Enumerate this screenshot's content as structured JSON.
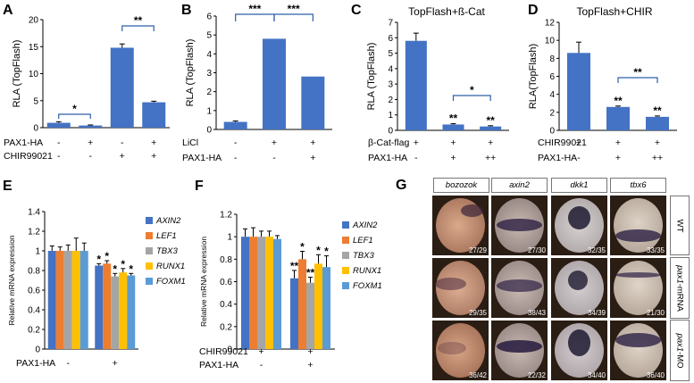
{
  "colors": {
    "bar": "#4472C4",
    "AXIN2": "#4472C4",
    "LEF1": "#ED7D31",
    "TBX3": "#A5A5A5",
    "RUNX1": "#FFC000",
    "FOXM1": "#5B9BD5",
    "bracket": "#2E5FA8"
  },
  "chart_data": [
    {
      "panel": "A",
      "type": "bar",
      "title": "",
      "ylabel": "RLA (TopFlash)",
      "ylim": [
        0,
        20
      ],
      "yticks": [
        0,
        5,
        10,
        15,
        20
      ],
      "values": [
        0.9,
        0.4,
        14.8,
        4.7
      ],
      "errors": [
        0.2,
        0.1,
        0.7,
        0.2
      ],
      "rows": [
        {
          "label": "PAX1-HA",
          "marks": [
            "-",
            "+",
            "-",
            "+"
          ]
        },
        {
          "label": "CHIR99021",
          "marks": [
            "-",
            "-",
            "+",
            "+"
          ]
        }
      ],
      "significance": [
        "*",
        "**"
      ]
    },
    {
      "panel": "B",
      "type": "bar",
      "title": "",
      "ylabel": "RLA (TopFlash)",
      "ylim": [
        0,
        6
      ],
      "yticks": [
        0,
        1,
        2,
        3,
        4,
        5,
        6
      ],
      "values": [
        0.4,
        4.8,
        2.8
      ],
      "errors": [
        0.05,
        0,
        0
      ],
      "rows": [
        {
          "label": "LiCl",
          "marks": [
            "-",
            "+",
            "+"
          ]
        },
        {
          "label": "PAX1-HA",
          "marks": [
            "-",
            "-",
            "+"
          ]
        }
      ],
      "significance": [
        "***",
        "***"
      ]
    },
    {
      "panel": "C",
      "type": "bar",
      "title": "TopFlash+ß-Cat",
      "ylabel": "RLA (TopFlash)",
      "ylim": [
        0,
        7
      ],
      "yticks": [
        0,
        1,
        2,
        3,
        4,
        5,
        6,
        7
      ],
      "values": [
        5.8,
        0.38,
        0.25
      ],
      "errors": [
        0.5,
        0.05,
        0.05
      ],
      "rows": [
        {
          "label": "β-Cat-flag",
          "marks": [
            "+",
            "+",
            "+"
          ]
        },
        {
          "label": "PAX1-HA",
          "marks": [
            "-",
            "+",
            "++"
          ]
        }
      ],
      "significance": [
        "*"
      ],
      "bar_stars": [
        "",
        "**",
        "**"
      ]
    },
    {
      "panel": "D",
      "type": "bar",
      "title": "TopFlash+CHIR",
      "ylabel": "RLA(TopFlash)",
      "ylim": [
        0,
        12
      ],
      "yticks": [
        0,
        2,
        4,
        6,
        8,
        10,
        12
      ],
      "values": [
        8.6,
        2.6,
        1.5
      ],
      "errors": [
        1.2,
        0.1,
        0.1
      ],
      "rows": [
        {
          "label": "CHIR99021",
          "marks": [
            "+",
            "+",
            "+"
          ]
        },
        {
          "label": "PAX1-HA",
          "marks": [
            "-",
            "+",
            "++"
          ]
        }
      ],
      "significance": [
        "**"
      ],
      "bar_stars": [
        "",
        "**",
        "**"
      ]
    },
    {
      "panel": "E",
      "type": "bar",
      "title": "",
      "ylabel": "Relative mRNA expression",
      "ylim": [
        0,
        1.4
      ],
      "yticks": [
        0,
        0.2,
        0.4,
        0.6,
        0.8,
        1,
        1.2,
        1.4
      ],
      "series": [
        {
          "name": "AXIN2",
          "values": [
            1.0,
            0.85
          ],
          "errors": [
            0.05,
            0.02
          ]
        },
        {
          "name": "LEF1",
          "values": [
            1.0,
            0.87
          ],
          "errors": [
            0.04,
            0.03
          ]
        },
        {
          "name": "TBX3",
          "values": [
            1.0,
            0.74
          ],
          "errors": [
            0.06,
            0.03
          ]
        },
        {
          "name": "RUNX1",
          "values": [
            1.0,
            0.78
          ],
          "errors": [
            0.13,
            0.04
          ]
        },
        {
          "name": "FOXM1",
          "values": [
            1.0,
            0.75
          ],
          "errors": [
            0.08,
            0.02
          ]
        }
      ],
      "rows": [
        {
          "label": "PAX1-HA",
          "marks": [
            "-",
            "+"
          ]
        }
      ],
      "bar_stars": [
        [
          "",
          "",
          "",
          "",
          ""
        ],
        [
          "*",
          "*",
          "*",
          "*",
          "*"
        ]
      ]
    },
    {
      "panel": "F",
      "type": "bar",
      "title": "",
      "ylabel": "Relative mRNA expression",
      "ylim": [
        0,
        1.2
      ],
      "yticks": [
        0,
        0.2,
        0.4,
        0.6,
        0.8,
        1,
        1.2
      ],
      "series": [
        {
          "name": "AXIN2",
          "values": [
            1.0,
            0.63
          ],
          "errors": [
            0.07,
            0.07
          ]
        },
        {
          "name": "LEF1",
          "values": [
            1.0,
            0.8
          ],
          "errors": [
            0.08,
            0.07
          ]
        },
        {
          "name": "TBX3",
          "values": [
            1.0,
            0.59
          ],
          "errors": [
            0.05,
            0.05
          ]
        },
        {
          "name": "RUNX1",
          "values": [
            1.0,
            0.76
          ],
          "errors": [
            0.05,
            0.08
          ]
        },
        {
          "name": "FOXM1",
          "values": [
            0.98,
            0.73
          ],
          "errors": [
            0.03,
            0.1
          ]
        }
      ],
      "rows": [
        {
          "label": "CHIR99021",
          "marks": [
            "+",
            "+"
          ]
        },
        {
          "label": "PAX1-HA",
          "marks": [
            "-",
            "+"
          ]
        }
      ],
      "bar_stars": [
        [
          "",
          "",
          "",
          "",
          ""
        ],
        [
          "**",
          "*",
          "**",
          "*",
          "*"
        ]
      ]
    }
  ],
  "panel_g": {
    "letter": "G",
    "columns": [
      "bozozok",
      "axin2",
      "dkk1",
      "tbx6"
    ],
    "rows": [
      {
        "label": "WT",
        "label_italic": "",
        "counts": [
          "27/29",
          "27/30",
          "32/35",
          "33/35"
        ]
      },
      {
        "label": "mRNA",
        "label_italic": "pax1-",
        "counts": [
          "29/35",
          "38/43",
          "34/39",
          "21/30"
        ]
      },
      {
        "label": "MO",
        "label_italic": "pax1-",
        "counts": [
          "36/42",
          "22/32",
          "34/40",
          "36/40"
        ]
      }
    ]
  }
}
